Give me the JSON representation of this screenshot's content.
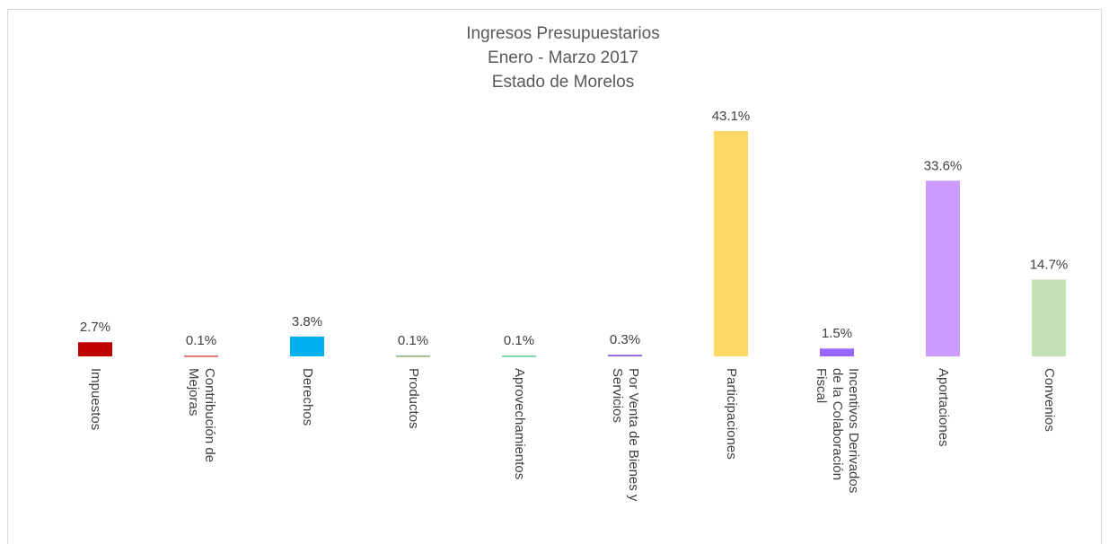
{
  "chart_data": {
    "type": "bar",
    "title": [
      "Ingresos Presupuestarios",
      "Enero - Marzo 2017",
      "Estado de Morelos"
    ],
    "categories": [
      "Impuestos",
      "Contribución de Mejoras",
      "Derechos",
      "Productos",
      "Aprovechamientos",
      "Por Venta de Bienes y Servicios",
      "Participaciones",
      "Incentivos Derivados de la Colaboración Fiscal",
      "Aportaciones",
      "Convenios"
    ],
    "values": [
      2.7,
      0.1,
      3.8,
      0.1,
      0.1,
      0.3,
      43.1,
      1.5,
      33.6,
      14.7
    ],
    "value_labels": [
      "2.7%",
      "0.1%",
      "3.8%",
      "0.1%",
      "0.1%",
      "0.3%",
      "43.1%",
      "1.5%",
      "33.6%",
      "14.7%"
    ],
    "colors": [
      "#c00000",
      "#c00000",
      "#00b0f0",
      "#548235",
      "#00b050",
      "#7f5fd6",
      "#ffd966",
      "#9966ff",
      "#cc99ff",
      "#c5e0b4"
    ]
  }
}
